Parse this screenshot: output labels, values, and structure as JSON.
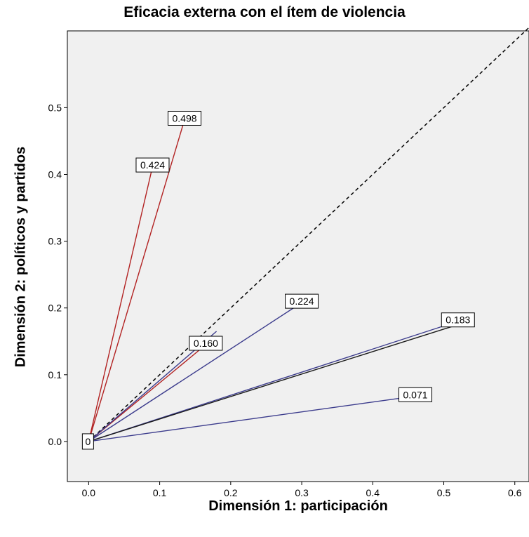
{
  "chart_data": {
    "type": "line",
    "title": "Eficacia externa con el ítem de violencia",
    "xlabel": "Dimensión 1: participación",
    "ylabel": "Dimensión 2:  políticos y partidos",
    "xlim": [
      -0.03,
      0.62
    ],
    "ylim": [
      -0.06,
      0.615
    ],
    "xticks": [
      "0.0",
      "0.1",
      "0.2",
      "0.3",
      "0.4",
      "0.5",
      "0.6"
    ],
    "yticks": [
      "0.0",
      "0.1",
      "0.2",
      "0.3",
      "0.4",
      "0.5"
    ],
    "grid": false,
    "reference_line": {
      "style": "dashed",
      "from": [
        0,
        0
      ],
      "to": [
        0.62,
        0.62
      ]
    },
    "series": [
      {
        "color": "#b22222",
        "points": [
          [
            0,
            0
          ],
          [
            0.135,
            0.482
          ]
        ],
        "label": "0.498"
      },
      {
        "color": "#b22222",
        "points": [
          [
            0,
            0
          ],
          [
            0.09,
            0.412
          ]
        ],
        "label": "0.424"
      },
      {
        "color": "#b22222",
        "points": [
          [
            0,
            0
          ],
          [
            0.165,
            0.145
          ]
        ],
        "label": "0.160"
      },
      {
        "color": "#3b3b8c",
        "points": [
          [
            0,
            0
          ],
          [
            0.18,
            0.165
          ]
        ],
        "label": ""
      },
      {
        "color": "#3b3b8c",
        "points": [
          [
            0,
            0
          ],
          [
            0.3,
            0.208
          ]
        ],
        "label": "0.224"
      },
      {
        "color": "#3b3b8c",
        "points": [
          [
            0,
            0
          ],
          [
            0.52,
            0.18
          ]
        ],
        "label": "0.183"
      },
      {
        "color": "#1a1a1a",
        "points": [
          [
            0,
            0
          ],
          [
            0.52,
            0.175
          ]
        ],
        "label": ""
      },
      {
        "color": "#3b3b8c",
        "points": [
          [
            0,
            0
          ],
          [
            0.46,
            0.068
          ]
        ],
        "label": "0.071"
      }
    ],
    "origin_label": "0",
    "colors": {
      "plot_background": "#f0f0f0",
      "red_series": "#b22222",
      "blue_series": "#3b3b8c"
    }
  }
}
